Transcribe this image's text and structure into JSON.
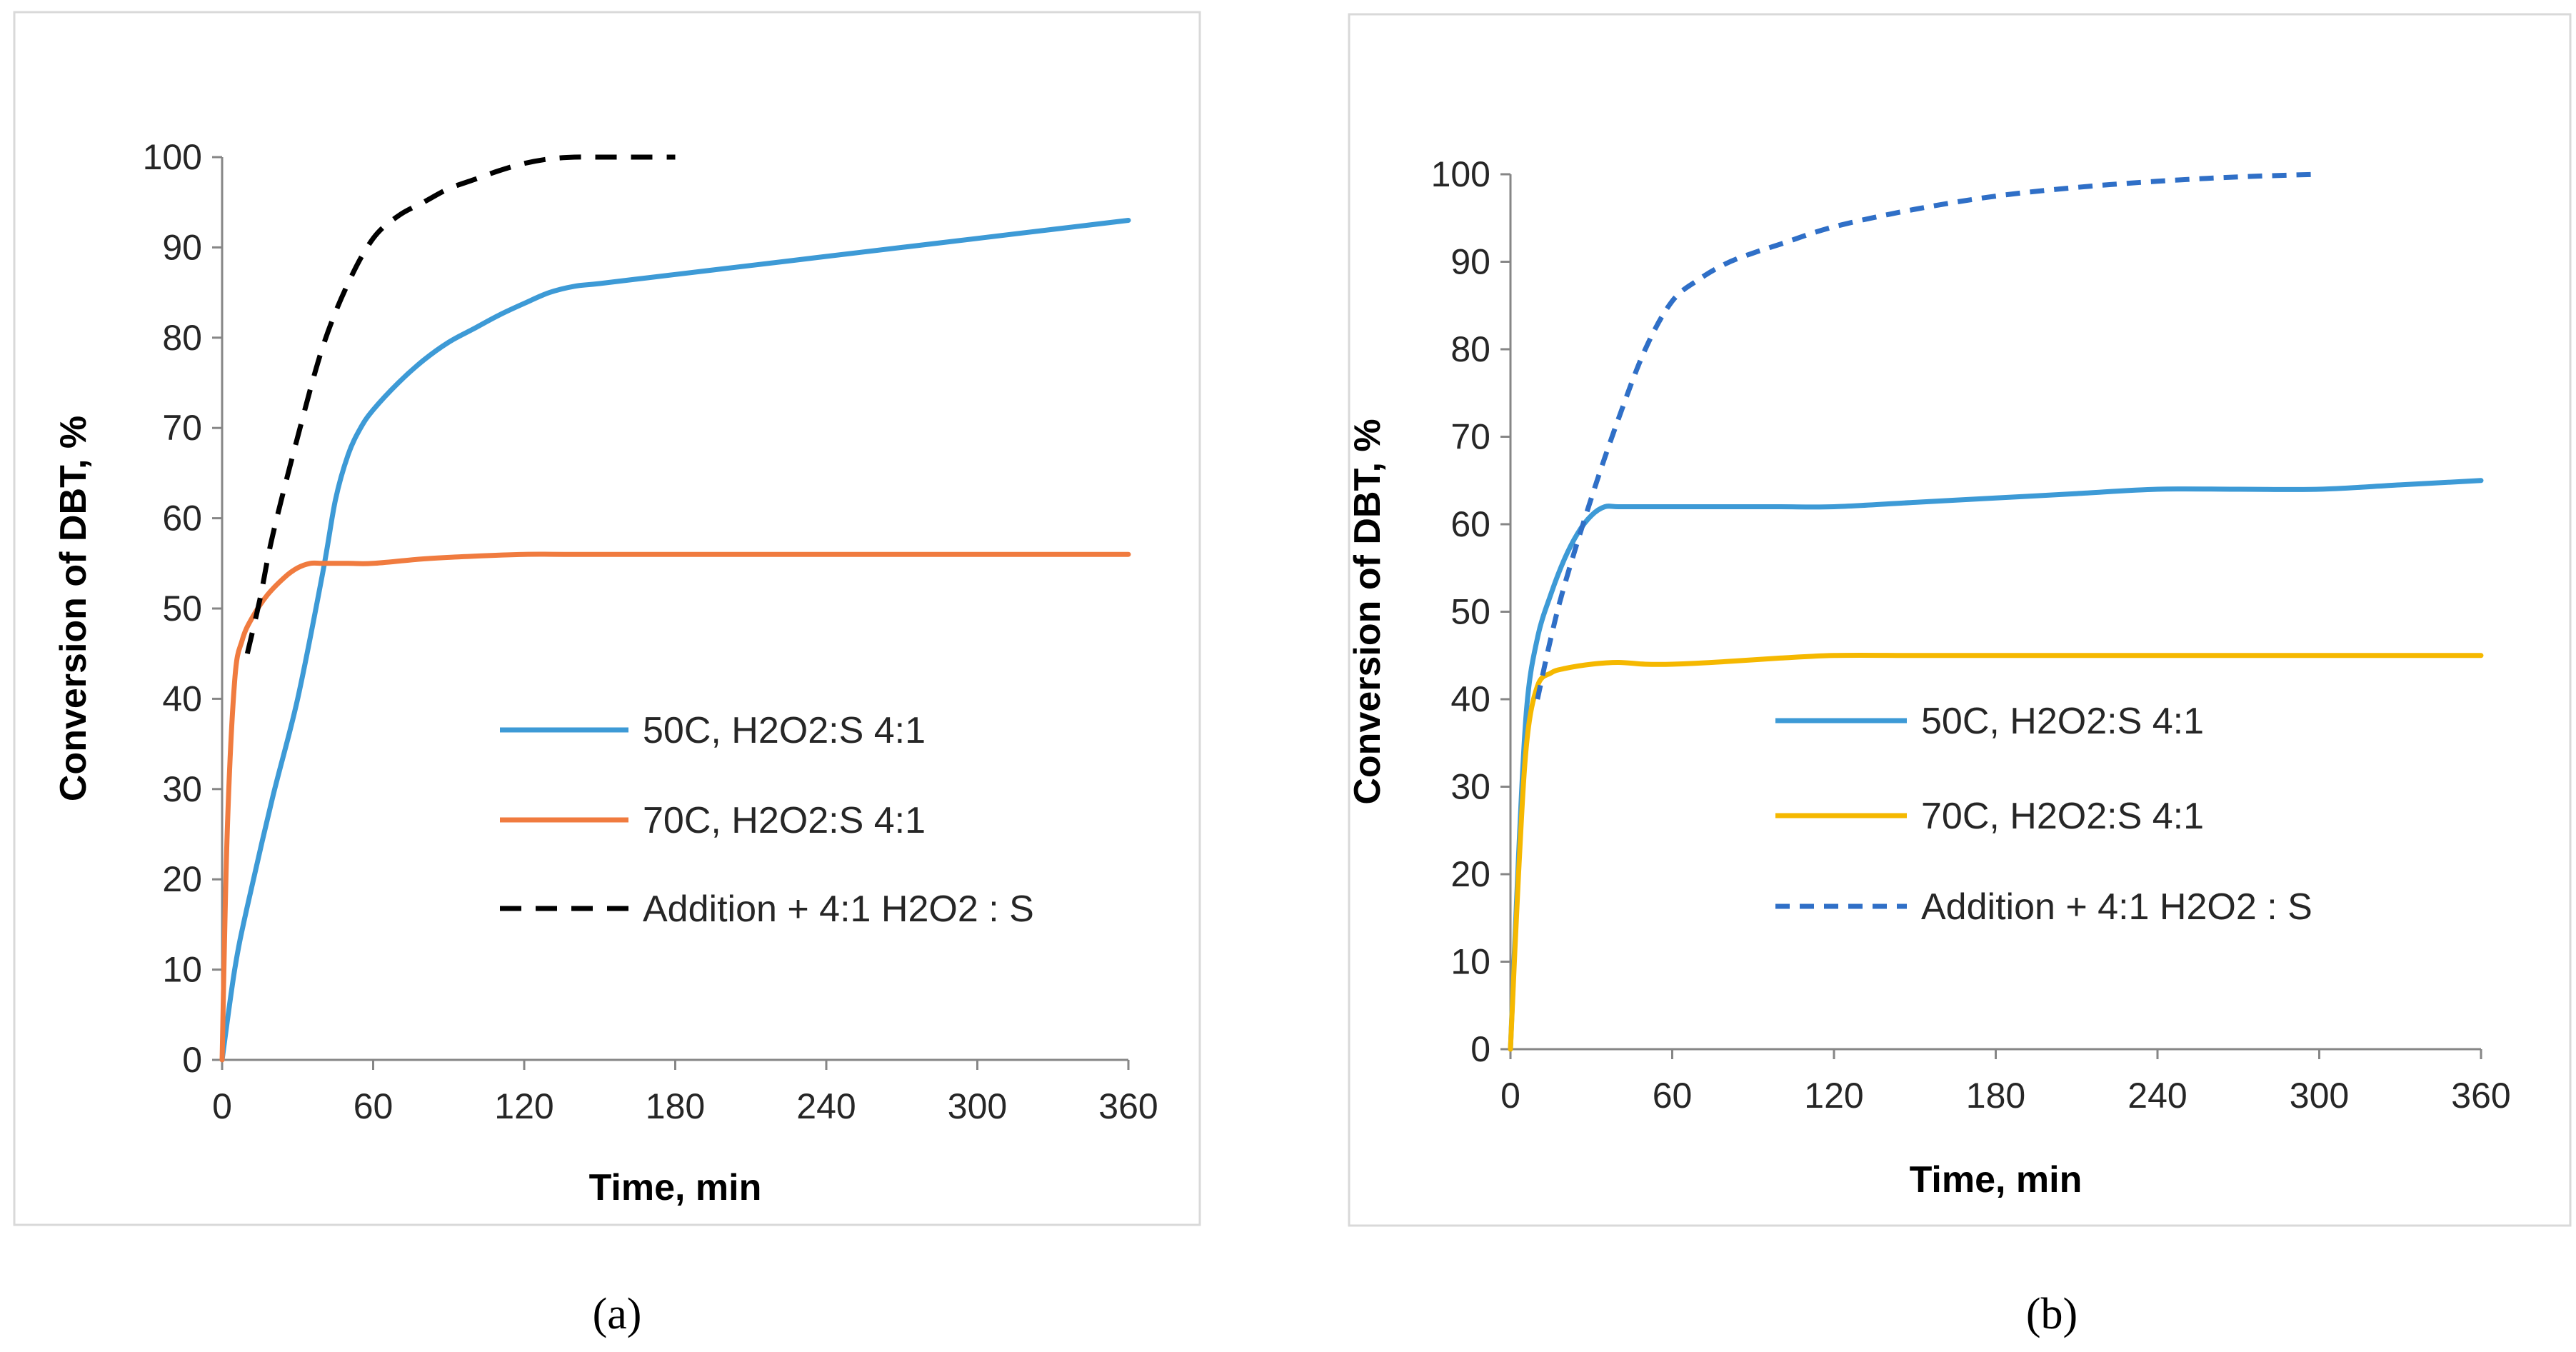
{
  "chart_data": [
    {
      "type": "line",
      "panel_caption": "(a)",
      "xlabel": "Time, min",
      "ylabel": "Conversion of DBT, %",
      "xlim": [
        0,
        360
      ],
      "ylim": [
        0,
        100
      ],
      "xticks": [
        "0",
        "60",
        "120",
        "180",
        "240",
        "300",
        "360"
      ],
      "yticks": [
        "0",
        "10",
        "20",
        "30",
        "40",
        "50",
        "60",
        "70",
        "80",
        "90",
        "100"
      ],
      "grid": false,
      "legend_position": "right-middle",
      "series": [
        {
          "name": "50C, H2O2:S 4:1",
          "color": "#3d9ad6",
          "dash": "solid",
          "x": [
            0,
            5,
            10,
            20,
            30,
            40,
            45,
            50,
            55,
            60,
            70,
            80,
            90,
            100,
            110,
            120,
            130,
            140,
            150,
            180,
            210,
            240,
            270,
            300,
            330,
            360
          ],
          "y": [
            0,
            10,
            17,
            29,
            40,
            54,
            62,
            67,
            70,
            72,
            75,
            77.5,
            79.5,
            81,
            82.5,
            83.8,
            85,
            85.7,
            86,
            87,
            88,
            89,
            90,
            91,
            92,
            93
          ]
        },
        {
          "name": "70C, H2O2:S 4:1",
          "color": "#f07b3f",
          "dash": "solid",
          "x": [
            0,
            2,
            5,
            8,
            12,
            18,
            25,
            30,
            35,
            40,
            50,
            60,
            80,
            100,
            120,
            140,
            180,
            240,
            300,
            360
          ],
          "y": [
            0,
            25,
            42,
            46.5,
            49,
            51.5,
            53.5,
            54.5,
            55,
            55,
            55,
            55,
            55.5,
            55.8,
            56,
            56,
            56,
            56,
            56,
            56
          ]
        },
        {
          "name": "Addition + 4:1 H2O2 : S",
          "color": "#000000",
          "dash": "dashed",
          "x": [
            10,
            15,
            20,
            30,
            40,
            50,
            60,
            70,
            80,
            90,
            100,
            110,
            120,
            130,
            140,
            150,
            160,
            170,
            180
          ],
          "y": [
            45,
            51,
            58,
            69,
            79,
            86,
            91,
            93.5,
            95,
            96.5,
            97.5,
            98.5,
            99.3,
            99.8,
            100,
            100,
            100,
            100,
            100
          ]
        }
      ]
    },
    {
      "type": "line",
      "panel_caption": "(b)",
      "xlabel": "Time, min",
      "ylabel": "Conversion of DBT, %",
      "xlim": [
        0,
        360
      ],
      "ylim": [
        0,
        100
      ],
      "xticks": [
        "0",
        "60",
        "120",
        "180",
        "240",
        "300",
        "360"
      ],
      "yticks": [
        "0",
        "10",
        "20",
        "30",
        "40",
        "50",
        "60",
        "70",
        "80",
        "90",
        "100"
      ],
      "grid": false,
      "legend_position": "right-middle",
      "series": [
        {
          "name": "50C, H2O2:S 4:1",
          "color": "#3d9ad6",
          "dash": "solid",
          "x": [
            0,
            3,
            6,
            10,
            15,
            20,
            25,
            30,
            35,
            40,
            50,
            60,
            80,
            100,
            120,
            150,
            180,
            210,
            240,
            270,
            300,
            330,
            360
          ],
          "y": [
            0,
            22,
            39,
            47,
            52,
            56,
            59,
            61,
            62,
            62,
            62,
            62,
            62,
            62,
            62,
            62.5,
            63,
            63.5,
            64,
            64,
            64,
            64.5,
            65
          ]
        },
        {
          "name": "70C, H2O2:S 4:1",
          "color": "#f5b800",
          "dash": "solid",
          "x": [
            0,
            3,
            6,
            10,
            15,
            20,
            30,
            40,
            50,
            60,
            80,
            100,
            120,
            150,
            180,
            240,
            300,
            360
          ],
          "y": [
            0,
            20,
            35,
            41.5,
            43,
            43.5,
            44,
            44.2,
            44,
            44,
            44.3,
            44.7,
            45,
            45,
            45,
            45,
            45,
            45
          ]
        },
        {
          "name": "Addition + 4:1 H2O2 : S",
          "color": "#2f6fc7",
          "dash": "dashed",
          "x": [
            10,
            15,
            20,
            30,
            40,
            50,
            60,
            70,
            80,
            90,
            100,
            120,
            150,
            180,
            210,
            240,
            270,
            300
          ],
          "y": [
            40,
            47,
            53,
            63,
            72,
            80,
            85.5,
            88,
            89.8,
            91,
            92,
            94,
            96,
            97.5,
            98.5,
            99.2,
            99.7,
            100
          ]
        }
      ]
    }
  ]
}
